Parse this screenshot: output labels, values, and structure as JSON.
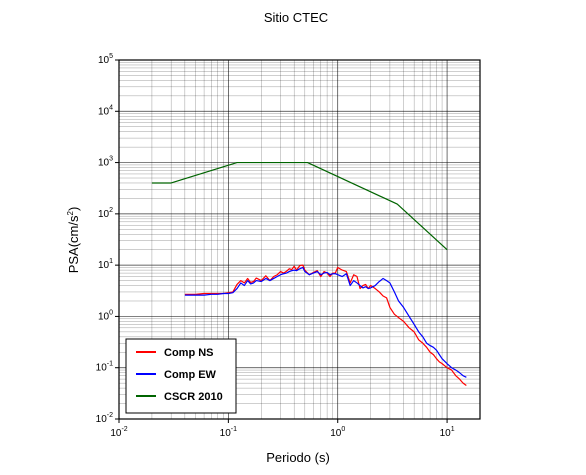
{
  "chart_data": {
    "type": "line",
    "title": "Sitio CTEC",
    "xlabel": "Periodo (s)",
    "ylabel": {
      "base": "PSA(cm/s",
      "exponent": "2",
      "suffix": ")"
    },
    "xscale": "log",
    "yscale": "log",
    "xlim": [
      0.01,
      20
    ],
    "ylim": [
      0.01,
      100000
    ],
    "grid": true,
    "legend_position": "bottom-left",
    "x_ticks": [
      {
        "value": 0.01,
        "base": "10",
        "exponent": "-2"
      },
      {
        "value": 0.1,
        "base": "10",
        "exponent": "-1"
      },
      {
        "value": 1,
        "base": "10",
        "exponent": "0"
      },
      {
        "value": 10,
        "base": "10",
        "exponent": "1"
      }
    ],
    "y_ticks": [
      {
        "value": 0.01,
        "base": "10",
        "exponent": "-2"
      },
      {
        "value": 0.1,
        "base": "10",
        "exponent": "-1"
      },
      {
        "value": 1,
        "base": "10",
        "exponent": "0"
      },
      {
        "value": 10,
        "base": "10",
        "exponent": "1"
      },
      {
        "value": 100,
        "base": "10",
        "exponent": "2"
      },
      {
        "value": 1000,
        "base": "10",
        "exponent": "3"
      },
      {
        "value": 10000,
        "base": "10",
        "exponent": "4"
      },
      {
        "value": 100000,
        "base": "10",
        "exponent": "5"
      }
    ],
    "series": [
      {
        "name": "Comp NS",
        "color": "#ff0000",
        "x": [
          0.04,
          0.05,
          0.06,
          0.07,
          0.08,
          0.09,
          0.1,
          0.11,
          0.12,
          0.13,
          0.14,
          0.15,
          0.16,
          0.17,
          0.18,
          0.2,
          0.22,
          0.24,
          0.26,
          0.28,
          0.3,
          0.32,
          0.34,
          0.36,
          0.38,
          0.4,
          0.42,
          0.45,
          0.48,
          0.5,
          0.55,
          0.6,
          0.65,
          0.7,
          0.75,
          0.8,
          0.85,
          0.9,
          0.95,
          1.0,
          1.1,
          1.2,
          1.3,
          1.4,
          1.5,
          1.6,
          1.7,
          1.8,
          1.9,
          2.0,
          2.2,
          2.4,
          2.6,
          2.8,
          3.0,
          3.3,
          3.6,
          4.0,
          4.5,
          5.0,
          5.5,
          6.0,
          6.5,
          7.0,
          7.5,
          8.0,
          8.5,
          9.0,
          10,
          11,
          12,
          13,
          14,
          15
        ],
        "values": [
          2.7,
          2.7,
          2.8,
          2.8,
          2.8,
          2.8,
          2.9,
          3.0,
          4.2,
          5.0,
          4.5,
          5.5,
          4.6,
          4.8,
          5.6,
          5.0,
          6.2,
          5.0,
          6.0,
          6.5,
          7.5,
          7.0,
          7.6,
          8.5,
          8.2,
          9.5,
          8.0,
          9.8,
          10.0,
          8.0,
          6.5,
          7.2,
          7.8,
          6.0,
          7.5,
          7.0,
          6.0,
          7.0,
          7.0,
          9.0,
          8.0,
          7.5,
          4.5,
          6.5,
          6.0,
          3.5,
          4.0,
          4.2,
          3.5,
          4.0,
          3.5,
          3.0,
          2.5,
          2.3,
          1.5,
          1.1,
          0.95,
          0.8,
          0.6,
          0.5,
          0.35,
          0.3,
          0.25,
          0.2,
          0.18,
          0.15,
          0.13,
          0.12,
          0.1,
          0.09,
          0.07,
          0.06,
          0.05,
          0.045
        ]
      },
      {
        "name": "Comp EW",
        "color": "#0000ff",
        "x": [
          0.04,
          0.05,
          0.06,
          0.07,
          0.08,
          0.09,
          0.1,
          0.11,
          0.12,
          0.13,
          0.14,
          0.15,
          0.16,
          0.17,
          0.18,
          0.2,
          0.22,
          0.24,
          0.26,
          0.28,
          0.3,
          0.32,
          0.34,
          0.36,
          0.38,
          0.4,
          0.42,
          0.45,
          0.48,
          0.5,
          0.55,
          0.6,
          0.65,
          0.7,
          0.75,
          0.8,
          0.85,
          0.9,
          0.95,
          1.0,
          1.1,
          1.2,
          1.3,
          1.4,
          1.5,
          1.6,
          1.7,
          1.8,
          1.9,
          2.0,
          2.2,
          2.4,
          2.6,
          2.8,
          3.0,
          3.3,
          3.6,
          4.0,
          4.5,
          5.0,
          5.5,
          6.0,
          6.5,
          7.0,
          7.5,
          8.0,
          8.5,
          9.0,
          10,
          11,
          12,
          13,
          14,
          15
        ],
        "values": [
          2.6,
          2.6,
          2.6,
          2.7,
          2.7,
          2.8,
          2.8,
          2.9,
          3.5,
          4.5,
          4.0,
          5.0,
          4.3,
          4.5,
          5.0,
          4.8,
          5.5,
          5.0,
          5.5,
          6.0,
          6.5,
          6.8,
          7.0,
          7.5,
          7.8,
          8.0,
          7.8,
          8.5,
          9.0,
          7.5,
          6.5,
          7.0,
          7.5,
          6.5,
          7.0,
          7.2,
          6.5,
          6.8,
          6.8,
          6.5,
          6.0,
          6.8,
          4.0,
          5.0,
          4.5,
          4.0,
          3.6,
          3.8,
          3.5,
          3.6,
          4.0,
          4.8,
          5.5,
          5.0,
          4.5,
          3.0,
          2.0,
          1.5,
          1.0,
          0.7,
          0.5,
          0.4,
          0.3,
          0.27,
          0.25,
          0.22,
          0.18,
          0.15,
          0.12,
          0.1,
          0.09,
          0.08,
          0.07,
          0.065
        ]
      },
      {
        "name": "CSCR 2010",
        "color": "#006400",
        "x": [
          0.02,
          0.03,
          0.12,
          0.53,
          3.5,
          10
        ],
        "values": [
          400,
          400,
          1000,
          1000,
          155,
          20
        ]
      }
    ]
  }
}
